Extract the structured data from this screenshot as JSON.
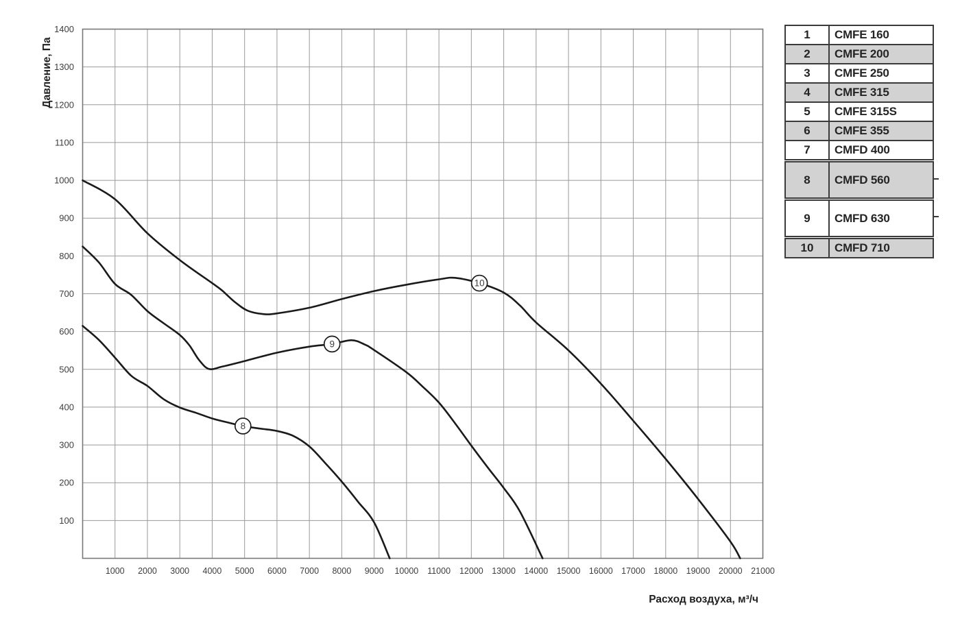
{
  "chart_data": {
    "type": "line",
    "title": "",
    "xlabel": "Расход воздуха, м³/ч",
    "ylabel": "Давление, Па",
    "xlim": [
      0,
      21000
    ],
    "ylim": [
      0,
      1400
    ],
    "x_ticks": [
      1000,
      2000,
      3000,
      4000,
      5000,
      6000,
      7000,
      8000,
      9000,
      10000,
      11000,
      12000,
      13000,
      14000,
      15000,
      16000,
      17000,
      18000,
      19000,
      20000,
      21000
    ],
    "y_ticks": [
      100,
      200,
      300,
      400,
      500,
      600,
      700,
      800,
      900,
      1000,
      1100,
      1200,
      1300,
      1400
    ],
    "grid": true,
    "legend_position": "right-table",
    "series": [
      {
        "name": "8",
        "model": "CMFD 560",
        "marker": {
          "x": 4950,
          "y": 350
        },
        "points": [
          [
            0,
            615
          ],
          [
            500,
            578
          ],
          [
            1000,
            531
          ],
          [
            1500,
            483
          ],
          [
            2000,
            456
          ],
          [
            2500,
            421
          ],
          [
            3000,
            399
          ],
          [
            3500,
            385
          ],
          [
            4000,
            370
          ],
          [
            4500,
            359
          ],
          [
            4950,
            350
          ],
          [
            5500,
            343
          ],
          [
            6000,
            337
          ],
          [
            6500,
            324
          ],
          [
            7000,
            296
          ],
          [
            7500,
            251
          ],
          [
            8000,
            203
          ],
          [
            8500,
            150
          ],
          [
            9000,
            95
          ],
          [
            9480,
            0
          ]
        ]
      },
      {
        "name": "9",
        "model": "CMFD 630",
        "marker": {
          "x": 7700,
          "y": 567
        },
        "points": [
          [
            0,
            825
          ],
          [
            500,
            783
          ],
          [
            1000,
            726
          ],
          [
            1500,
            697
          ],
          [
            2000,
            654
          ],
          [
            2500,
            622
          ],
          [
            3000,
            591
          ],
          [
            3300,
            563
          ],
          [
            3600,
            524
          ],
          [
            3900,
            501
          ],
          [
            4300,
            507
          ],
          [
            5000,
            522
          ],
          [
            6000,
            544
          ],
          [
            7000,
            560
          ],
          [
            7700,
            567
          ],
          [
            8300,
            577
          ],
          [
            8700,
            566
          ],
          [
            9000,
            551
          ],
          [
            10000,
            492
          ],
          [
            10500,
            454
          ],
          [
            11000,
            412
          ],
          [
            11500,
            357
          ],
          [
            12000,
            298
          ],
          [
            12500,
            241
          ],
          [
            13000,
            186
          ],
          [
            13500,
            124
          ],
          [
            14200,
            0
          ]
        ]
      },
      {
        "name": "10",
        "model": "CMFD 710",
        "marker": {
          "x": 12250,
          "y": 728
        },
        "points": [
          [
            0,
            1000
          ],
          [
            1000,
            950
          ],
          [
            2000,
            860
          ],
          [
            3000,
            789
          ],
          [
            4000,
            728
          ],
          [
            4300,
            709
          ],
          [
            4700,
            678
          ],
          [
            5100,
            655
          ],
          [
            5600,
            646
          ],
          [
            6000,
            648
          ],
          [
            7000,
            663
          ],
          [
            8000,
            686
          ],
          [
            9000,
            707
          ],
          [
            10000,
            724
          ],
          [
            11000,
            738
          ],
          [
            11500,
            742
          ],
          [
            12250,
            728
          ],
          [
            13000,
            703
          ],
          [
            13500,
            669
          ],
          [
            14000,
            624
          ],
          [
            15000,
            550
          ],
          [
            16000,
            462
          ],
          [
            17000,
            364
          ],
          [
            18000,
            263
          ],
          [
            19000,
            157
          ],
          [
            20000,
            44
          ],
          [
            20300,
            0
          ]
        ]
      }
    ]
  },
  "legend": {
    "rows": [
      {
        "num": "1",
        "label": "CMFE 160",
        "shaded": false,
        "tall": false,
        "gap": false
      },
      {
        "num": "2",
        "label": "CMFE 200",
        "shaded": true,
        "tall": false,
        "gap": false
      },
      {
        "num": "3",
        "label": "CMFE 250",
        "shaded": false,
        "tall": false,
        "gap": false
      },
      {
        "num": "4",
        "label": "CMFE 315",
        "shaded": true,
        "tall": false,
        "gap": false
      },
      {
        "num": "5",
        "label": "CMFE 315S",
        "shaded": false,
        "tall": false,
        "gap": false
      },
      {
        "num": "6",
        "label": "CMFE 355",
        "shaded": true,
        "tall": false,
        "gap": false
      },
      {
        "num": "7",
        "label": "CMFD 400",
        "shaded": false,
        "tall": false,
        "gap": false
      },
      {
        "num": "8",
        "label": "CMFD 560",
        "shaded": true,
        "tall": true,
        "gap": true
      },
      {
        "num": "9",
        "label": "CMFD 630",
        "shaded": false,
        "tall": true,
        "gap": true
      },
      {
        "num": "10",
        "label": "CMFD 710",
        "shaded": true,
        "tall": false,
        "gap": true
      }
    ]
  },
  "colors": {
    "curve": "#1a1a1a",
    "grid": "#999999",
    "plot_border": "#777777",
    "tick_text": "#3d3d3d",
    "legend_border": "#3a3a3a",
    "legend_shaded": "#d2d2d2"
  }
}
